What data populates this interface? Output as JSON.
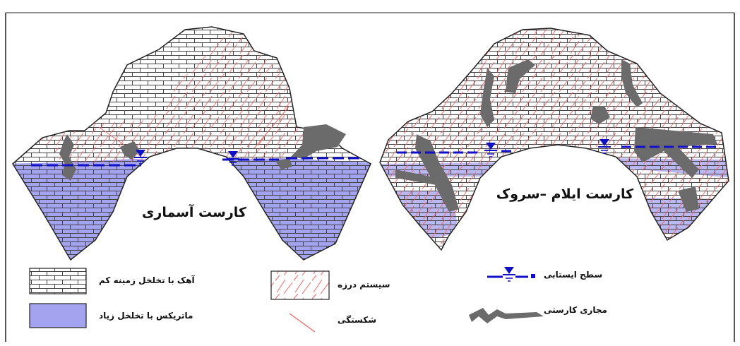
{
  "diagram": {
    "left_title": "کارست آسماری",
    "right_title": "کارست ایلام –سروک"
  },
  "legend": {
    "limestone_label": "آهک با تخلخل زمینه کم",
    "matrix_label": "ماتریکس با تخلخل زیاد",
    "joint_label": "سیستم درزه",
    "fracture_label": "شکستگی",
    "water_label": "سطح ایستابی",
    "conduit_label": "مجاری کارستی"
  },
  "colors": {
    "matrix_fill": "#a3a3f0",
    "brick_line": "#444444",
    "joint_line": "#ff6060",
    "water_line": "#1010c8",
    "conduit_fill": "#6b6b6b"
  }
}
